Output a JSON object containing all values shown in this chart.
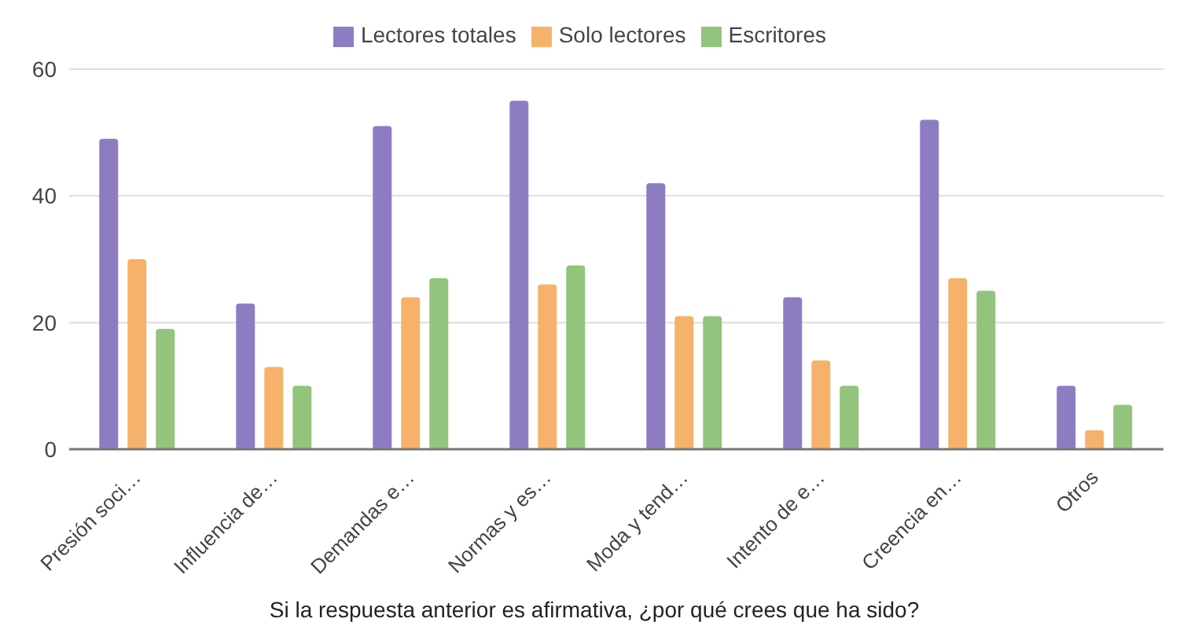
{
  "chart_data": {
    "type": "bar",
    "xlabel": "Si la respuesta anterior es afirmativa, ¿por qué crees que ha sido?",
    "categories": [
      "Presión soci…",
      "Influencia de…",
      "Demandas e…",
      "Normas y es…",
      "Moda y tend…",
      "Intento de e…",
      "Creencia en…",
      "Otros"
    ],
    "series": [
      {
        "name": "Lectores totales",
        "color": "#8e7cc3",
        "values": [
          49,
          23,
          51,
          55,
          42,
          24,
          52,
          10
        ]
      },
      {
        "name": "Solo lectores",
        "color": "#f6b26b",
        "values": [
          30,
          13,
          24,
          26,
          21,
          14,
          27,
          3
        ]
      },
      {
        "name": "Escritores",
        "color": "#93c47d",
        "values": [
          19,
          10,
          27,
          29,
          21,
          10,
          25,
          7
        ]
      }
    ],
    "ylim": [
      0,
      60
    ],
    "yticks": [
      0,
      20,
      40,
      60
    ],
    "grid": "y",
    "legend": "top"
  }
}
